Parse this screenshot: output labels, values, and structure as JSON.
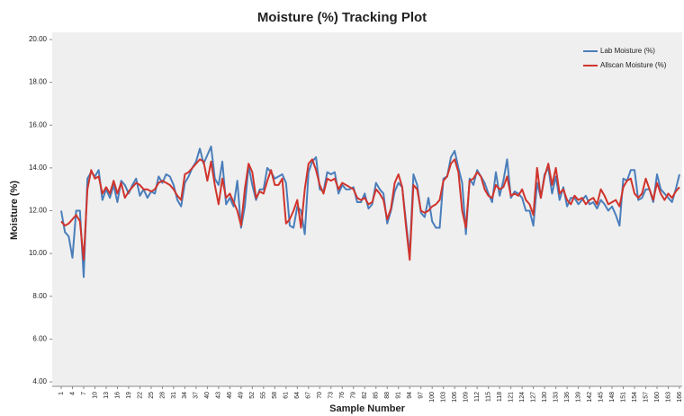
{
  "chart_data": {
    "type": "line",
    "title": "Moisture (%) Tracking Plot",
    "x_label": "Sample Number",
    "y_label": "Moisture (%)",
    "x": [
      1,
      2,
      3,
      4,
      5,
      6,
      7,
      8,
      9,
      10,
      11,
      12,
      13,
      14,
      15,
      16,
      17,
      18,
      19,
      20,
      21,
      22,
      23,
      24,
      25,
      26,
      27,
      28,
      29,
      30,
      31,
      32,
      33,
      34,
      35,
      36,
      37,
      38,
      39,
      40,
      41,
      42,
      43,
      44,
      45,
      46,
      47,
      48,
      49,
      50,
      51,
      52,
      53,
      54,
      55,
      56,
      57,
      58,
      59,
      60,
      61,
      62,
      63,
      64,
      65,
      66,
      67,
      68,
      69,
      70,
      71,
      72,
      73,
      74,
      75,
      76,
      77,
      78,
      79,
      80,
      81,
      82,
      83,
      84,
      85,
      86,
      87,
      88,
      89,
      90,
      91,
      92,
      93,
      94,
      95,
      96,
      97,
      98,
      99,
      100,
      101,
      102,
      103,
      104,
      105,
      106,
      107,
      108,
      109,
      110,
      111,
      112,
      113,
      114,
      115,
      116,
      117,
      118,
      119,
      120,
      121,
      122,
      123,
      124,
      125,
      126,
      127,
      128,
      129,
      130,
      131,
      132,
      133,
      134,
      135,
      136,
      137,
      138,
      139,
      140,
      141,
      142,
      143,
      144,
      145,
      146,
      147,
      148,
      149,
      150,
      151,
      152,
      153,
      154,
      155,
      156,
      157,
      158,
      159,
      160,
      161,
      162,
      163,
      164,
      165,
      166
    ],
    "series": [
      {
        "name": "Lab Moisture (%)",
        "color": "#4a7ebb",
        "values": [
          12.0,
          11.0,
          10.8,
          9.8,
          12.0,
          12.0,
          8.9,
          13.5,
          13.8,
          13.6,
          13.9,
          12.5,
          13.0,
          12.6,
          13.2,
          12.4,
          13.4,
          13.2,
          12.8,
          13.2,
          13.5,
          12.7,
          13.0,
          12.6,
          12.9,
          12.8,
          13.6,
          13.3,
          13.7,
          13.6,
          13.2,
          12.5,
          12.2,
          13.3,
          13.6,
          14.0,
          14.3,
          14.9,
          14.2,
          14.6,
          15.0,
          13.5,
          13.2,
          14.3,
          12.3,
          12.6,
          12.2,
          13.4,
          11.2,
          12.2,
          14.1,
          13.2,
          12.5,
          13.0,
          13.0,
          14.0,
          13.8,
          13.5,
          13.6,
          13.7,
          13.3,
          11.3,
          11.2,
          12.2,
          12.0,
          10.9,
          13.8,
          14.3,
          14.5,
          13.0,
          12.9,
          13.8,
          13.7,
          13.8,
          12.8,
          13.2,
          13.0,
          13.0,
          13.1,
          12.4,
          12.4,
          12.8,
          12.1,
          12.3,
          13.3,
          13.0,
          12.8,
          11.4,
          12.0,
          12.9,
          13.3,
          13.1,
          11.5,
          9.9,
          13.7,
          13.2,
          11.9,
          11.7,
          12.6,
          11.5,
          11.2,
          11.2,
          13.5,
          13.6,
          14.5,
          14.8,
          14.0,
          13.3,
          10.9,
          13.5,
          13.2,
          13.9,
          13.6,
          13.3,
          12.8,
          12.4,
          13.8,
          12.7,
          13.4,
          14.4,
          12.6,
          12.9,
          12.8,
          12.6,
          12.0,
          12.0,
          11.3,
          13.3,
          12.6,
          13.7,
          14.0,
          12.8,
          13.6,
          12.5,
          13.1,
          12.2,
          12.6,
          12.6,
          12.3,
          12.5,
          12.7,
          12.3,
          12.4,
          12.1,
          12.5,
          12.3,
          12.0,
          12.2,
          11.8,
          11.3,
          13.5,
          13.4,
          13.9,
          13.9,
          12.5,
          12.6,
          13.0,
          13.0,
          12.4,
          13.7,
          13.0,
          12.8,
          12.6,
          12.4,
          13.0,
          13.7
        ]
      },
      {
        "name": "Allscan Moisture (%)",
        "color": "#d0342c",
        "values": [
          11.5,
          11.3,
          11.4,
          11.6,
          11.8,
          11.5,
          9.7,
          13.0,
          13.9,
          13.5,
          13.6,
          12.8,
          13.1,
          12.8,
          13.4,
          12.8,
          13.3,
          12.6,
          12.9,
          13.1,
          13.3,
          13.2,
          13.0,
          13.0,
          12.9,
          13.0,
          13.3,
          13.4,
          13.3,
          13.2,
          13.0,
          12.7,
          12.5,
          13.7,
          13.8,
          14.0,
          14.2,
          14.4,
          14.3,
          13.4,
          14.3,
          13.2,
          12.3,
          13.5,
          12.6,
          12.8,
          12.4,
          12.0,
          11.3,
          13.0,
          14.2,
          13.8,
          12.6,
          12.9,
          12.8,
          13.4,
          13.9,
          13.2,
          13.2,
          13.5,
          11.4,
          11.6,
          12.0,
          12.5,
          11.2,
          13.0,
          14.2,
          14.4,
          13.9,
          13.2,
          12.8,
          13.5,
          13.4,
          13.5,
          13.0,
          13.3,
          13.2,
          13.1,
          13.0,
          12.6,
          12.5,
          12.6,
          12.3,
          12.4,
          13.0,
          12.8,
          12.5,
          11.6,
          12.1,
          13.3,
          13.7,
          13.1,
          11.3,
          9.7,
          13.2,
          13.0,
          12.0,
          11.9,
          12.0,
          12.2,
          12.3,
          12.5,
          13.4,
          13.6,
          14.2,
          14.4,
          13.8,
          12.0,
          11.2,
          13.4,
          13.5,
          13.8,
          13.6,
          13.0,
          12.7,
          12.6,
          13.2,
          13.0,
          13.1,
          13.6,
          12.7,
          12.8,
          12.7,
          13.0,
          12.5,
          12.3,
          11.8,
          14.0,
          12.6,
          13.6,
          14.2,
          13.2,
          14.0,
          12.8,
          13.0,
          12.5,
          12.3,
          12.7,
          12.5,
          12.6,
          12.3,
          12.5,
          12.6,
          12.3,
          13.0,
          12.7,
          12.3,
          12.4,
          12.5,
          12.2,
          13.1,
          13.4,
          13.5,
          12.8,
          12.6,
          12.8,
          13.5,
          13.0,
          12.5,
          13.3,
          12.8,
          12.5,
          12.8,
          12.6,
          12.9,
          13.1
        ]
      }
    ],
    "xlim": [
      1,
      166
    ],
    "xticks": [
      1,
      4,
      7,
      10,
      13,
      16,
      19,
      22,
      25,
      28,
      31,
      34,
      37,
      40,
      43,
      46,
      49,
      52,
      55,
      58,
      61,
      64,
      67,
      70,
      73,
      76,
      79,
      82,
      85,
      88,
      91,
      94,
      97,
      100,
      103,
      106,
      109,
      112,
      115,
      118,
      121,
      124,
      127,
      130,
      133,
      136,
      139,
      142,
      145,
      148,
      151,
      154,
      157,
      160,
      163,
      166
    ],
    "ylim": [
      4,
      20
    ],
    "yticks": [
      {
        "value": 4,
        "label": "4.00"
      },
      {
        "value": 6,
        "label": "6.00"
      },
      {
        "value": 8,
        "label": "8.00"
      },
      {
        "value": 10,
        "label": "10.00"
      },
      {
        "value": 12,
        "label": "12.00"
      },
      {
        "value": 14,
        "label": "14.00"
      },
      {
        "value": 16,
        "label": "16.00"
      },
      {
        "value": 18,
        "label": "18.00"
      },
      {
        "value": 20,
        "label": "20.00"
      }
    ],
    "legend": "top-right"
  }
}
